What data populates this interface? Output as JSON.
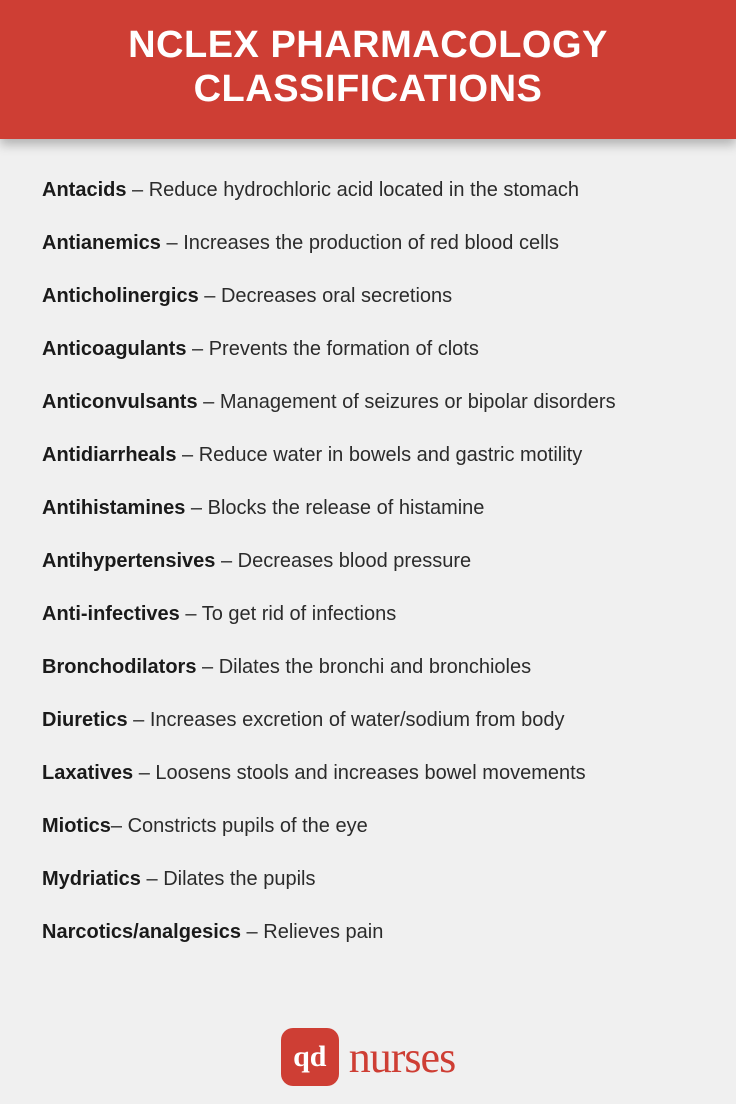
{
  "header": {
    "title": "NCLEX PHARMACOLOGY CLASSIFICATIONS"
  },
  "colors": {
    "primary": "#ce3e34",
    "background": "#f0f0f0",
    "text": "#2b2b2b",
    "term": "#1a1a1a"
  },
  "typography": {
    "title_fontsize": 38,
    "title_weight": 800,
    "body_fontsize": 20,
    "term_weight": 800
  },
  "entries": [
    {
      "term": "Antacids",
      "sep": " – ",
      "desc": "Reduce hydrochloric acid located in the stomach"
    },
    {
      "term": "Antianemics",
      "sep": " – ",
      "desc": "Increases the production of red blood cells"
    },
    {
      "term": "Anticholinergics",
      "sep": " – ",
      "desc": "Decreases oral secretions"
    },
    {
      "term": "Anticoagulants",
      "sep": " – ",
      "desc": "Prevents the formation of clots"
    },
    {
      "term": "Anticonvulsants",
      "sep": " – ",
      "desc": "Management of seizures or bipolar disorders"
    },
    {
      "term": "Antidiarrheals",
      "sep": " – ",
      "desc": "Reduce water in bowels and gastric motility"
    },
    {
      "term": "Antihistamines",
      "sep": " – ",
      "desc": "Blocks the release of histamine"
    },
    {
      "term": "Antihypertensives",
      "sep": " – ",
      "desc": "Decreases blood pressure"
    },
    {
      "term": "Anti-infectives",
      "sep": " – ",
      "desc": "To get rid of infections"
    },
    {
      "term": "Bronchodilators",
      "sep": " – ",
      "desc": "Dilates the bronchi and bronchioles"
    },
    {
      "term": "Diuretics",
      "sep": " – ",
      "desc": "Increases excretion of water/sodium from body"
    },
    {
      "term": "Laxatives",
      "sep": " – ",
      "desc": "Loosens stools and increases bowel movements"
    },
    {
      "term": "Miotics",
      "sep": "– ",
      "desc": "Constricts pupils of the eye"
    },
    {
      "term": "Mydriatics",
      "sep": " – ",
      "desc": "Dilates the pupils"
    },
    {
      "term": "Narcotics/analgesics",
      "sep": " – ",
      "desc": "Relieves pain"
    }
  ],
  "footer": {
    "badge_text": "qd",
    "brand_text": "nurses"
  }
}
